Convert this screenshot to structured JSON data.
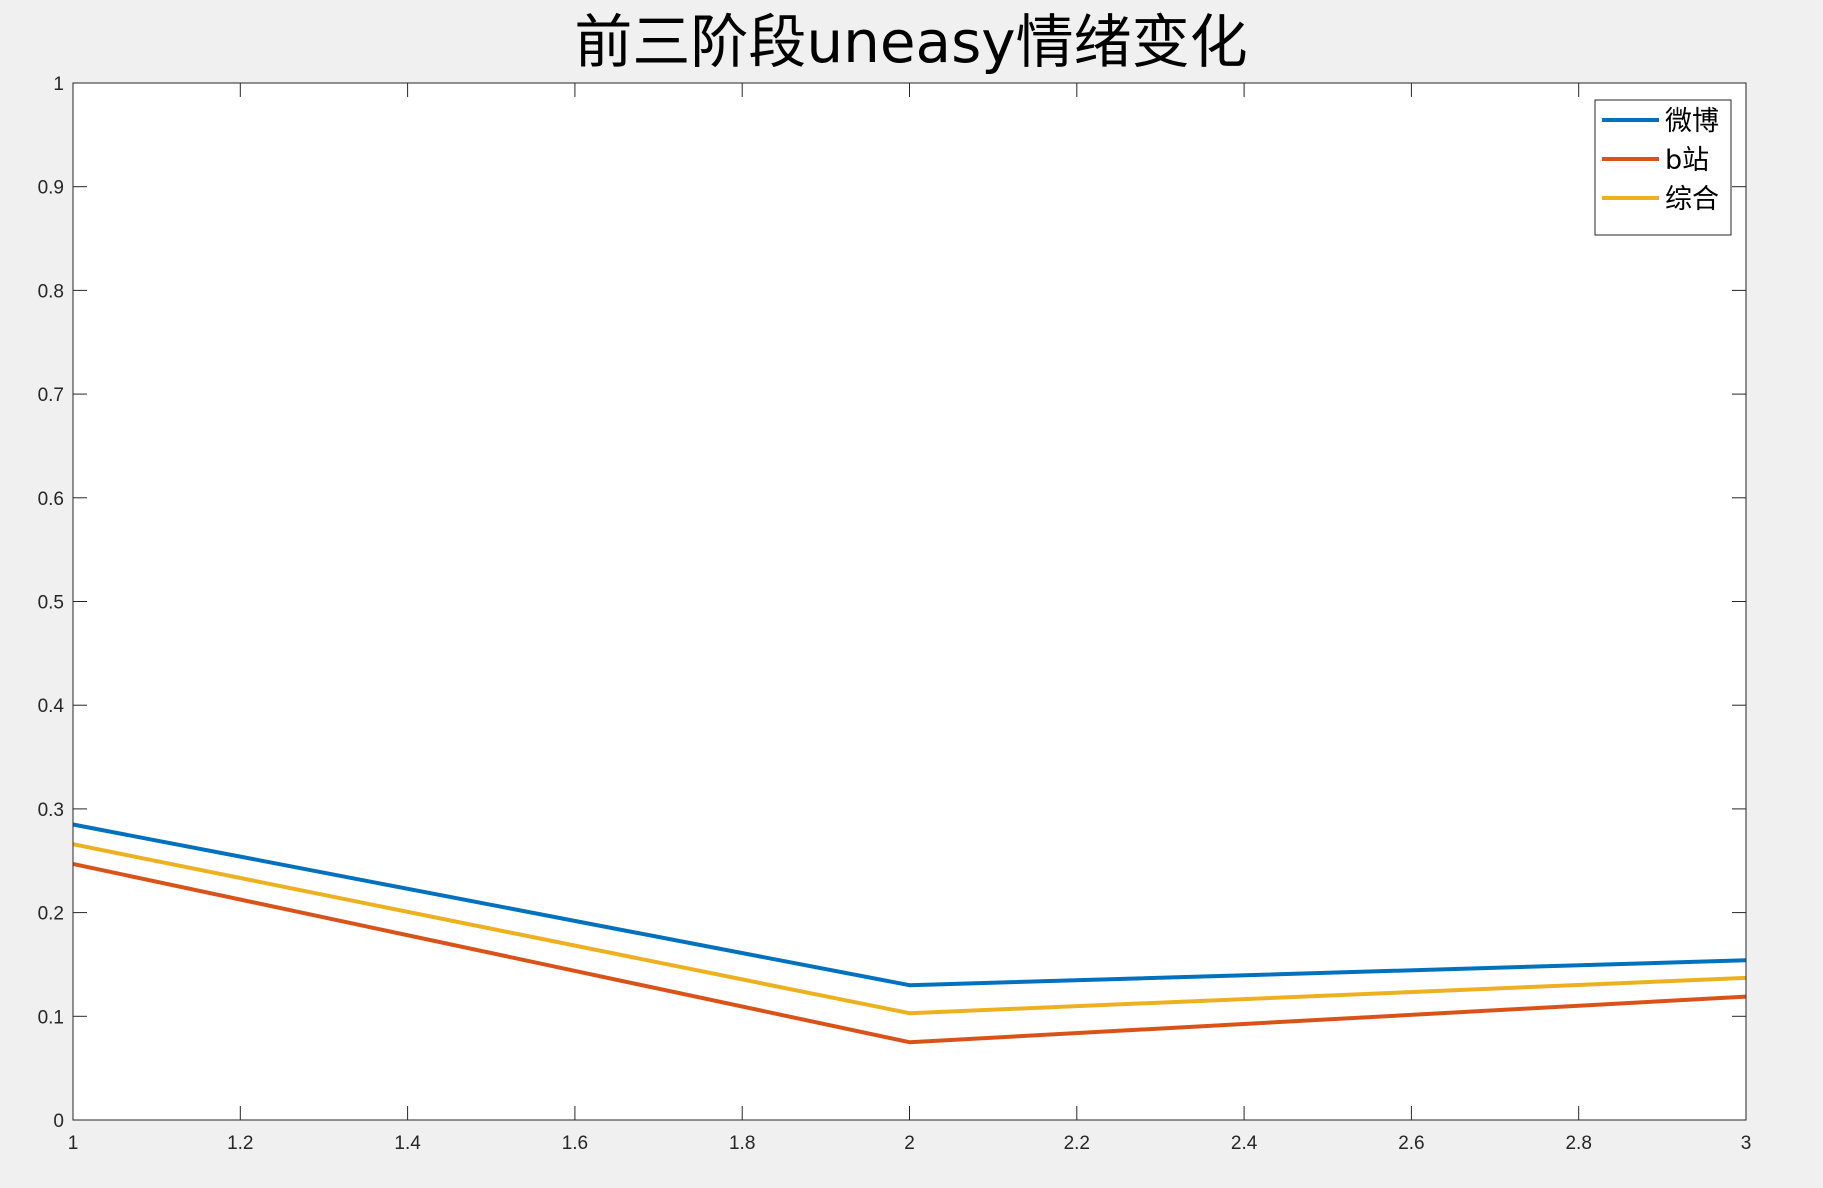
{
  "chart_data": {
    "type": "line",
    "title": "前三阶段uneasy情绪变化",
    "xlabel": "",
    "ylabel": "",
    "x": [
      1,
      2,
      3
    ],
    "xlim": [
      1,
      3
    ],
    "ylim": [
      0,
      1
    ],
    "xticks": [
      1,
      1.2,
      1.4,
      1.6,
      1.8,
      2,
      2.2,
      2.4,
      2.6,
      2.8,
      3
    ],
    "yticks": [
      0,
      0.1,
      0.2,
      0.3,
      0.4,
      0.5,
      0.6,
      0.7,
      0.8,
      0.9,
      1
    ],
    "xtick_labels": [
      "1",
      "1.2",
      "1.4",
      "1.6",
      "1.8",
      "2",
      "2.2",
      "2.4",
      "2.6",
      "2.8",
      "3"
    ],
    "ytick_labels": [
      "0",
      "0.1",
      "0.2",
      "0.3",
      "0.4",
      "0.5",
      "0.6",
      "0.7",
      "0.8",
      "0.9",
      "1"
    ],
    "grid": false,
    "legend_position": "top-right",
    "series": [
      {
        "name": "微博",
        "color": "#0072BD",
        "values": [
          0.285,
          0.13,
          0.154
        ]
      },
      {
        "name": "b站",
        "color": "#D95319",
        "values": [
          0.247,
          0.075,
          0.119
        ]
      },
      {
        "name": "综合",
        "color": "#EDB120",
        "values": [
          0.266,
          0.103,
          0.137
        ]
      }
    ]
  }
}
